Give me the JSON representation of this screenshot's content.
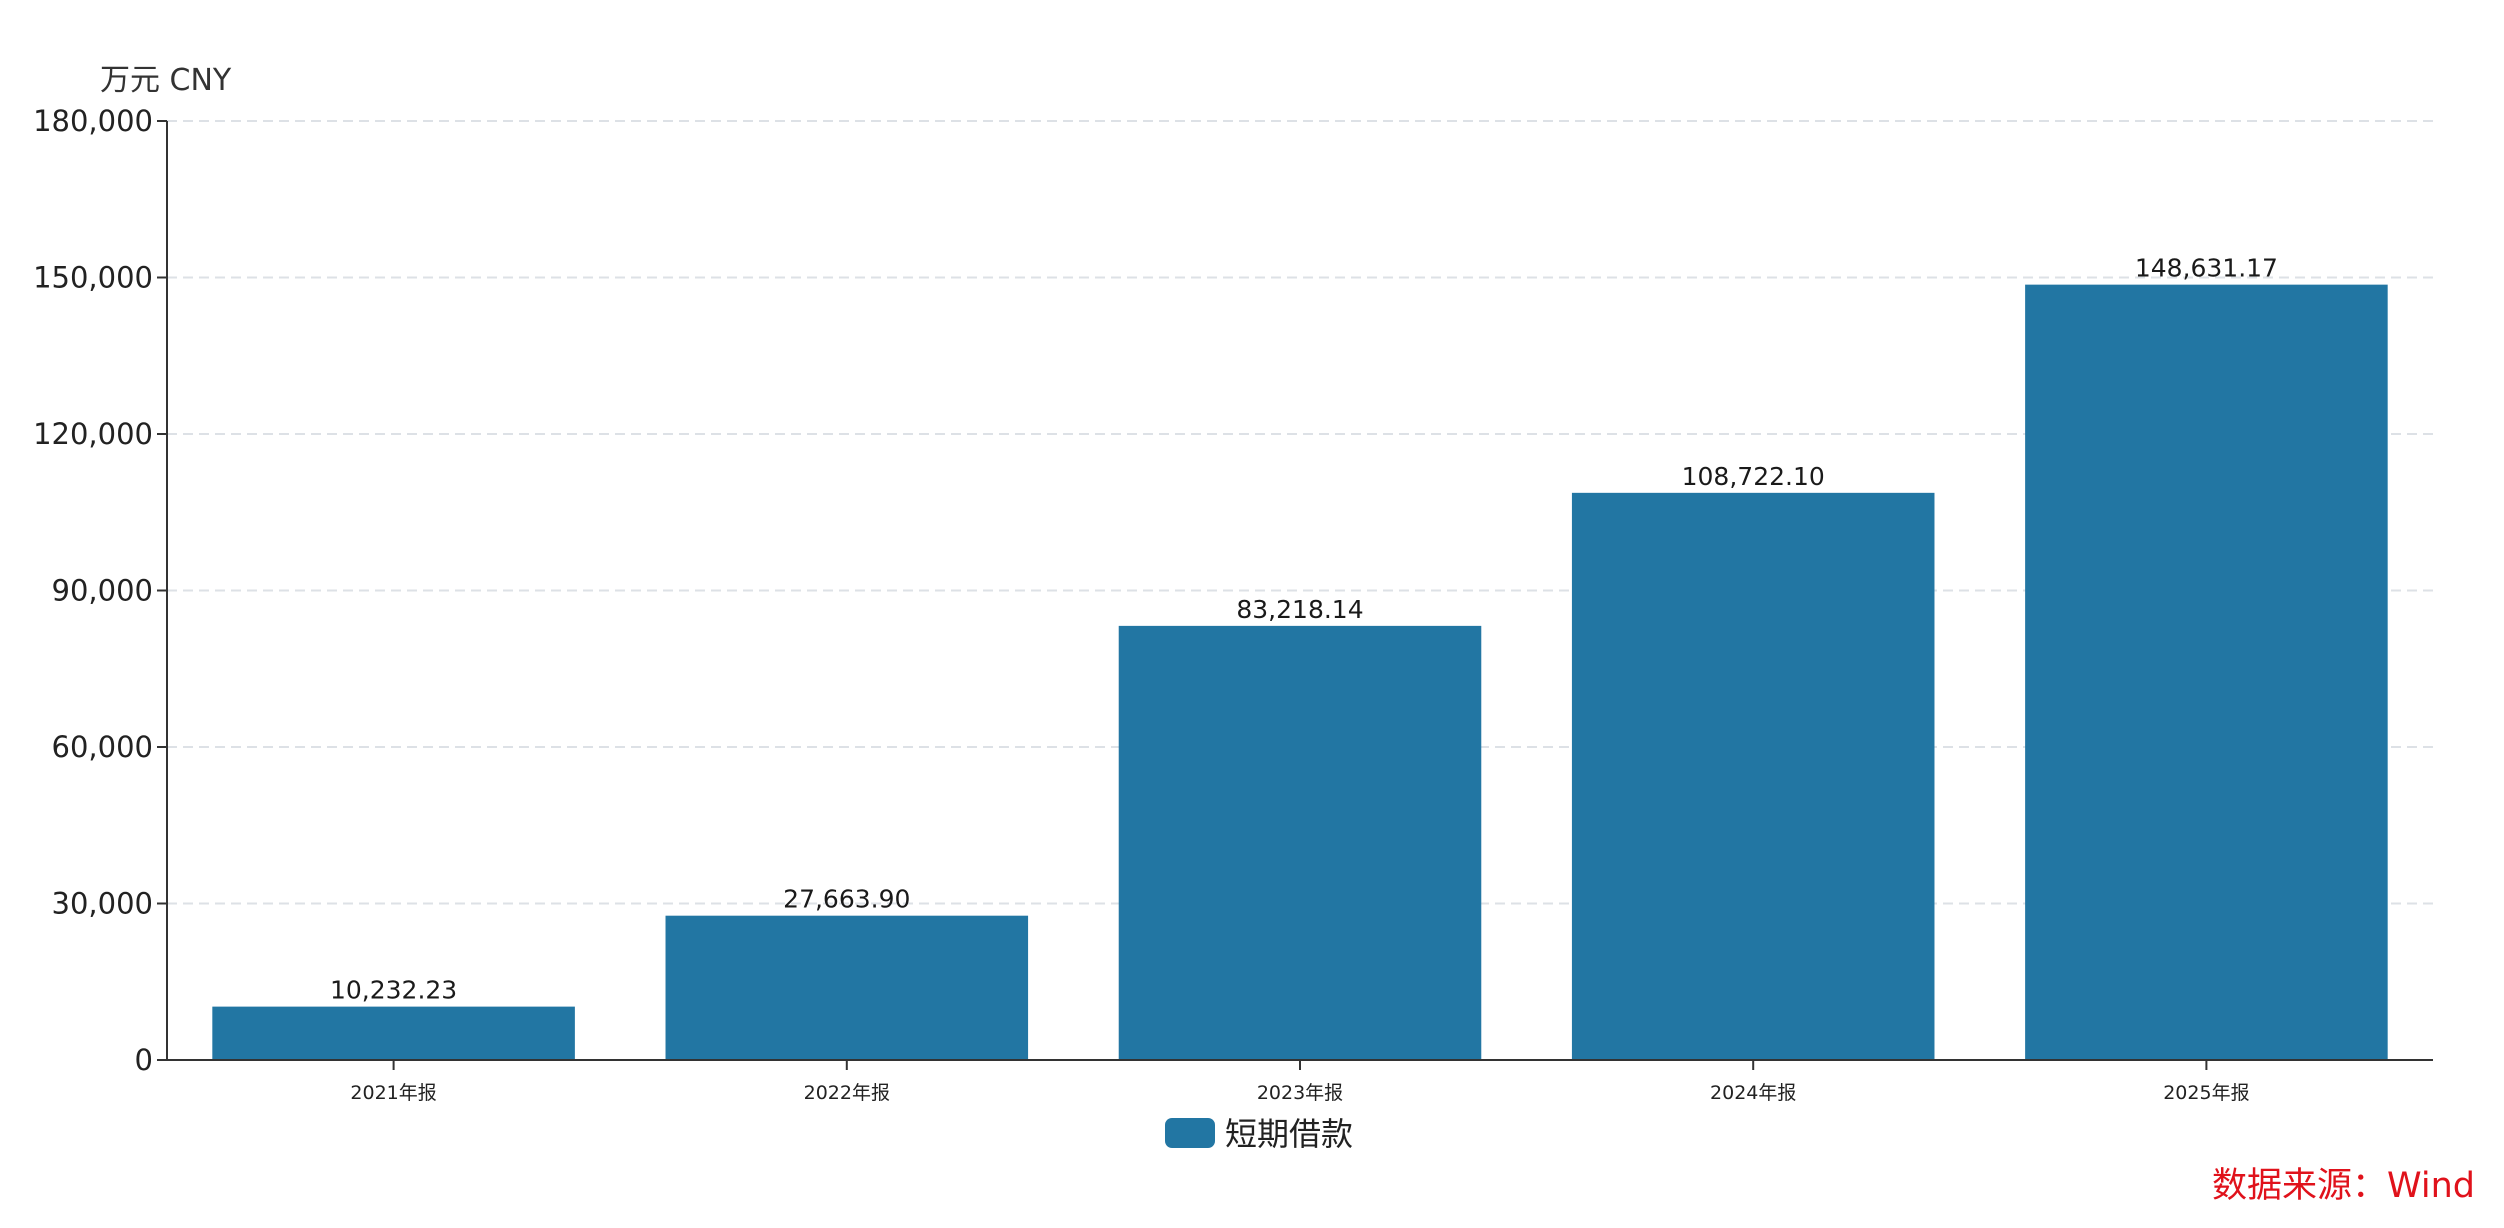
{
  "chart_data": {
    "type": "bar",
    "unit_label": "万元  CNY",
    "categories": [
      "2021年报",
      "2022年报",
      "2023年报",
      "2024年报",
      "2025年报"
    ],
    "series": [
      {
        "name": "短期借款",
        "color": "#2276a3",
        "values": [
          10232.23,
          27663.9,
          83218.14,
          108722.1,
          148631.17
        ],
        "labels": [
          "10,232.23",
          "27,663.90",
          "83,218.14",
          "108,722.10",
          "148,631.17"
        ]
      }
    ],
    "ylim": [
      0,
      180000
    ],
    "yticks": [
      0,
      30000,
      60000,
      90000,
      120000,
      150000,
      180000
    ],
    "ytick_labels": [
      "0",
      "30,000",
      "60,000",
      "90,000",
      "120,000",
      "150,000",
      "180,000"
    ],
    "grid": true,
    "legend_position": "bottom-center",
    "source": "数据来源：Wind"
  },
  "colors": {
    "bar": "#2276a3",
    "grid": "#dde1e6",
    "axis": "#333333",
    "source": "#e0121b"
  }
}
